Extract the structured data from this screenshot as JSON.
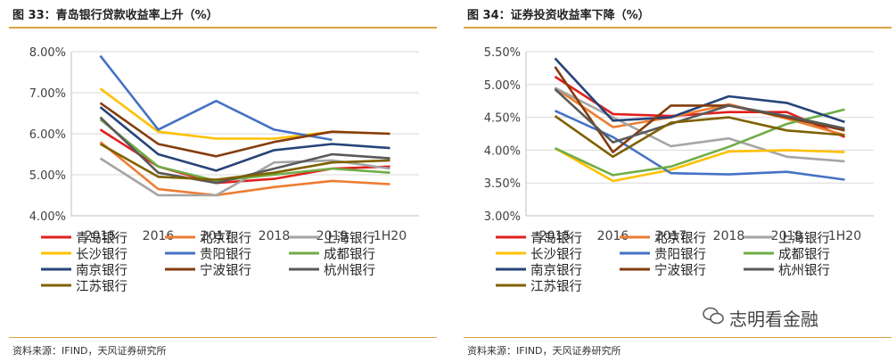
{
  "panels": [
    {
      "title": "图 33：青岛银行贷款收益率上升（%）",
      "source": "资料来源：IFIND，天风证券研究所"
    },
    {
      "title": "图 34：证券投资收益率下降（%）",
      "source": "资料来源：IFIND，天风证券研究所"
    }
  ],
  "watermark": "志明看金融",
  "chart_data": [
    {
      "type": "line",
      "categories": [
        "2015",
        "2016",
        "2017",
        "2018",
        "2019",
        "1H20"
      ],
      "ylim": [
        4.0,
        8.0
      ],
      "yticks": [
        "4.00%",
        "5.00%",
        "6.00%",
        "7.00%",
        "8.00%"
      ],
      "grid": true,
      "legend_position": "bottom",
      "series": [
        {
          "name": "青岛银行",
          "color": "#e02020",
          "values": [
            6.1,
            5.2,
            4.8,
            4.9,
            5.15,
            5.2
          ]
        },
        {
          "name": "北京银行",
          "color": "#ed7d31",
          "values": [
            5.8,
            4.65,
            4.5,
            4.7,
            4.85,
            4.77
          ]
        },
        {
          "name": "上海银行",
          "color": "#a5a5a5",
          "values": [
            5.4,
            4.5,
            4.5,
            5.3,
            5.35,
            5.15
          ]
        },
        {
          "name": "长沙银行",
          "color": "#ffc000",
          "values": [
            7.1,
            6.05,
            5.88,
            5.88,
            6.05,
            6.0
          ]
        },
        {
          "name": "贵阳银行",
          "color": "#4472c4",
          "values": [
            7.9,
            6.1,
            6.8,
            6.1,
            5.85,
            null
          ]
        },
        {
          "name": "成都银行",
          "color": "#70ad47",
          "values": [
            6.35,
            5.2,
            4.85,
            5.0,
            5.15,
            5.05
          ]
        },
        {
          "name": "南京银行",
          "color": "#264478",
          "values": [
            6.65,
            5.5,
            5.1,
            5.6,
            5.75,
            5.65
          ]
        },
        {
          "name": "宁波银行",
          "color": "#843c0c",
          "values": [
            6.75,
            5.75,
            5.45,
            5.8,
            6.05,
            6.0
          ]
        },
        {
          "name": "杭州银行",
          "color": "#595959",
          "values": [
            6.4,
            5.05,
            4.8,
            5.15,
            5.5,
            5.4
          ]
        },
        {
          "name": "江苏银行",
          "color": "#7f6000",
          "values": [
            5.75,
            4.95,
            4.88,
            5.05,
            5.3,
            5.35
          ]
        }
      ]
    },
    {
      "type": "line",
      "categories": [
        "2015",
        "2016",
        "2017",
        "2018",
        "2019",
        "1H20"
      ],
      "ylim": [
        3.0,
        5.5
      ],
      "yticks": [
        "3.00%",
        "3.50%",
        "4.00%",
        "4.50%",
        "5.00%",
        "5.50%"
      ],
      "grid": true,
      "legend_position": "bottom",
      "series": [
        {
          "name": "青岛银行",
          "color": "#e02020",
          "values": [
            5.12,
            4.55,
            4.52,
            4.58,
            4.58,
            4.2
          ]
        },
        {
          "name": "北京银行",
          "color": "#ed7d31",
          "values": [
            4.95,
            4.35,
            4.5,
            4.7,
            4.48,
            4.23
          ]
        },
        {
          "name": "上海银行",
          "color": "#a5a5a5",
          "values": [
            4.95,
            4.5,
            4.06,
            4.18,
            3.9,
            3.83
          ]
        },
        {
          "name": "长沙银行",
          "color": "#ffc000",
          "values": [
            4.03,
            3.53,
            3.7,
            3.98,
            4.0,
            3.97
          ]
        },
        {
          "name": "贵阳银行",
          "color": "#4472c4",
          "values": [
            4.6,
            4.2,
            3.65,
            3.63,
            3.67,
            3.55
          ]
        },
        {
          "name": "成都银行",
          "color": "#70ad47",
          "values": [
            4.03,
            3.62,
            3.75,
            4.05,
            4.4,
            4.62
          ]
        },
        {
          "name": "南京银行",
          "color": "#264478",
          "values": [
            5.4,
            4.45,
            4.5,
            4.82,
            4.72,
            4.43
          ]
        },
        {
          "name": "宁波银行",
          "color": "#843c0c",
          "values": [
            5.27,
            3.97,
            4.68,
            4.68,
            4.5,
            4.3
          ]
        },
        {
          "name": "杭州银行",
          "color": "#595959",
          "values": [
            4.93,
            4.12,
            4.4,
            4.68,
            4.52,
            4.33
          ]
        },
        {
          "name": "江苏银行",
          "color": "#7f6000",
          "values": [
            4.52,
            3.9,
            4.42,
            4.5,
            4.3,
            4.23
          ]
        }
      ]
    }
  ]
}
